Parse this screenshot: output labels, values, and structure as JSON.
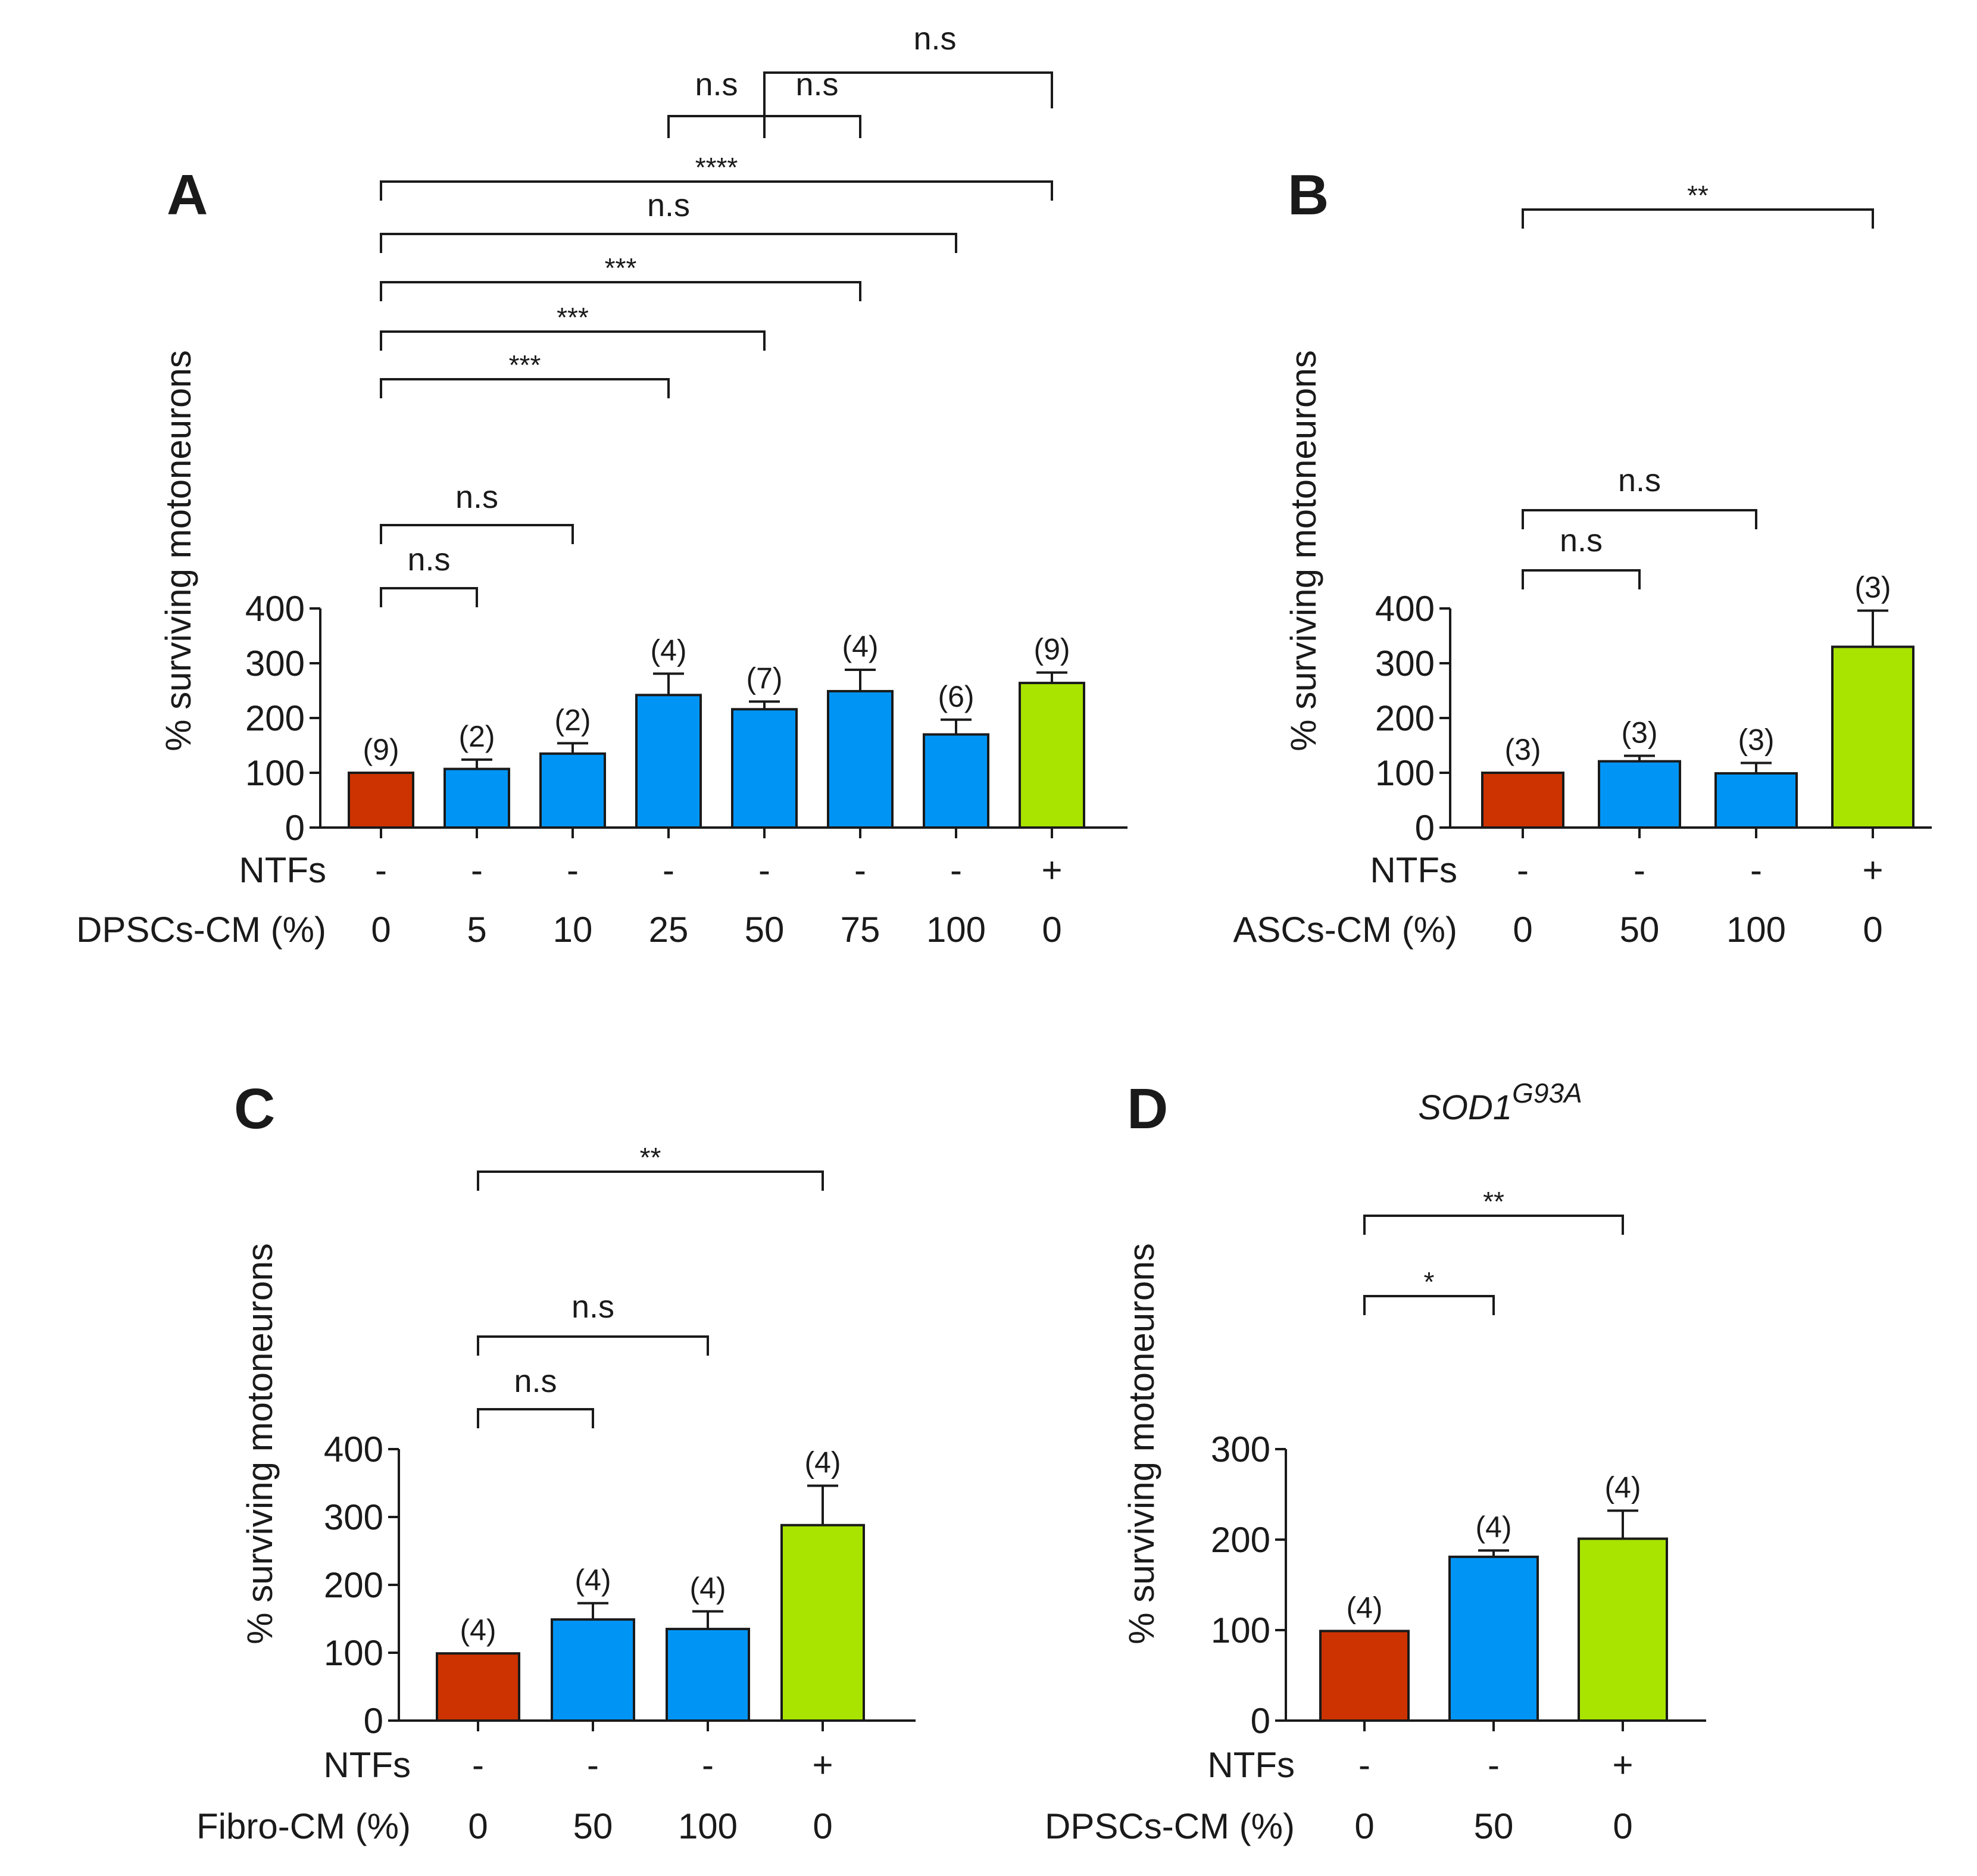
{
  "colors": {
    "control": "#cc3300",
    "treatment": "#0095f5",
    "positive": "#a8e400",
    "ink": "#1a1a1a"
  },
  "chart_data": [
    {
      "panel": "A",
      "type": "bar",
      "ylabel": "% surviving motoneurons",
      "ylim": [
        0,
        400
      ],
      "yticks": [
        0,
        100,
        200,
        300,
        400
      ],
      "rows": [
        {
          "label": "NTFs",
          "values": [
            "-",
            "-",
            "-",
            "-",
            "-",
            "-",
            "-",
            "+"
          ]
        },
        {
          "label": "DPSCs-CM (%)",
          "values": [
            "0",
            "5",
            "10",
            "25",
            "50",
            "75",
            "100",
            "0"
          ]
        }
      ],
      "values": [
        100,
        107,
        135,
        242,
        216,
        249,
        170,
        264
      ],
      "errors": [
        0,
        17,
        19,
        39,
        14,
        39,
        27,
        19
      ],
      "n": [
        "(9)",
        "(2)",
        "(2)",
        "(4)",
        "(7)",
        "(4)",
        "(6)",
        "(9)"
      ],
      "bar_colors": [
        "control",
        "treatment",
        "treatment",
        "treatment",
        "treatment",
        "treatment",
        "treatment",
        "positive"
      ],
      "comparisons": [
        {
          "from": 0,
          "to": 1,
          "label": "n.s",
          "star": false
        },
        {
          "from": 0,
          "to": 2,
          "label": "n.s",
          "star": false
        },
        {
          "from": 0,
          "to": 3,
          "label": "***",
          "star": true
        },
        {
          "from": 0,
          "to": 4,
          "label": "***",
          "star": true
        },
        {
          "from": 0,
          "to": 5,
          "label": "***",
          "star": true
        },
        {
          "from": 0,
          "to": 6,
          "label": "n.s",
          "star": false
        },
        {
          "from": 0,
          "to": 7,
          "label": "****",
          "star": true
        }
      ],
      "top_comparisons": [
        {
          "from": 3,
          "to": 4,
          "label": "n.s"
        },
        {
          "from": 4,
          "to": 5,
          "label": "n.s"
        },
        {
          "from": 4,
          "to": 7,
          "label": "n.s"
        }
      ]
    },
    {
      "panel": "B",
      "type": "bar",
      "ylabel": "% surviving motoneurons",
      "ylim": [
        0,
        400
      ],
      "yticks": [
        0,
        100,
        200,
        300,
        400
      ],
      "rows": [
        {
          "label": "NTFs",
          "values": [
            "-",
            "-",
            "-",
            "+"
          ]
        },
        {
          "label": "ASCs-CM (%)",
          "values": [
            "0",
            "50",
            "100",
            "0"
          ]
        }
      ],
      "values": [
        100,
        121,
        99,
        330
      ],
      "errors": [
        0,
        10,
        19,
        66
      ],
      "n": [
        "(3)",
        "(3)",
        "(3)",
        "(3)"
      ],
      "bar_colors": [
        "control",
        "treatment",
        "treatment",
        "positive"
      ],
      "comparisons": [
        {
          "from": 0,
          "to": 1,
          "label": "n.s",
          "star": false
        },
        {
          "from": 0,
          "to": 2,
          "label": "n.s",
          "star": false
        },
        {
          "from": 0,
          "to": 3,
          "label": "**",
          "star": true
        }
      ]
    },
    {
      "panel": "C",
      "type": "bar",
      "ylabel": "% surviving motoneurons",
      "ylim": [
        0,
        400
      ],
      "yticks": [
        0,
        100,
        200,
        300,
        400
      ],
      "rows": [
        {
          "label": "NTFs",
          "values": [
            "-",
            "-",
            "-",
            "+"
          ]
        },
        {
          "label": "Fibro-CM (%)",
          "values": [
            "0",
            "50",
            "100",
            "0"
          ]
        }
      ],
      "values": [
        99,
        149,
        135,
        288
      ],
      "errors": [
        0,
        24,
        26,
        58
      ],
      "n": [
        "(4)",
        "(4)",
        "(4)",
        "(4)"
      ],
      "bar_colors": [
        "control",
        "treatment",
        "treatment",
        "positive"
      ],
      "comparisons": [
        {
          "from": 0,
          "to": 1,
          "label": "n.s",
          "star": false
        },
        {
          "from": 0,
          "to": 2,
          "label": "n.s",
          "star": false
        },
        {
          "from": 0,
          "to": 3,
          "label": "**",
          "star": true
        }
      ]
    },
    {
      "panel": "D",
      "type": "bar",
      "title": "SOD1",
      "title_sup": "G93A",
      "ylabel": "% surviving motoneurons",
      "ylim": [
        0,
        300
      ],
      "yticks": [
        0,
        100,
        200,
        300
      ],
      "rows": [
        {
          "label": "NTFs",
          "values": [
            "-",
            "-",
            "+"
          ]
        },
        {
          "label": "DPSCs-CM (%)",
          "values": [
            "0",
            "50",
            "0"
          ]
        }
      ],
      "values": [
        99,
        181,
        201
      ],
      "errors": [
        0,
        7,
        31
      ],
      "n": [
        "(4)",
        "(4)",
        "(4)"
      ],
      "bar_colors": [
        "control",
        "treatment",
        "positive"
      ],
      "comparisons": [
        {
          "from": 0,
          "to": 1,
          "label": "*",
          "star": true
        },
        {
          "from": 0,
          "to": 2,
          "label": "**",
          "star": true
        }
      ]
    }
  ]
}
